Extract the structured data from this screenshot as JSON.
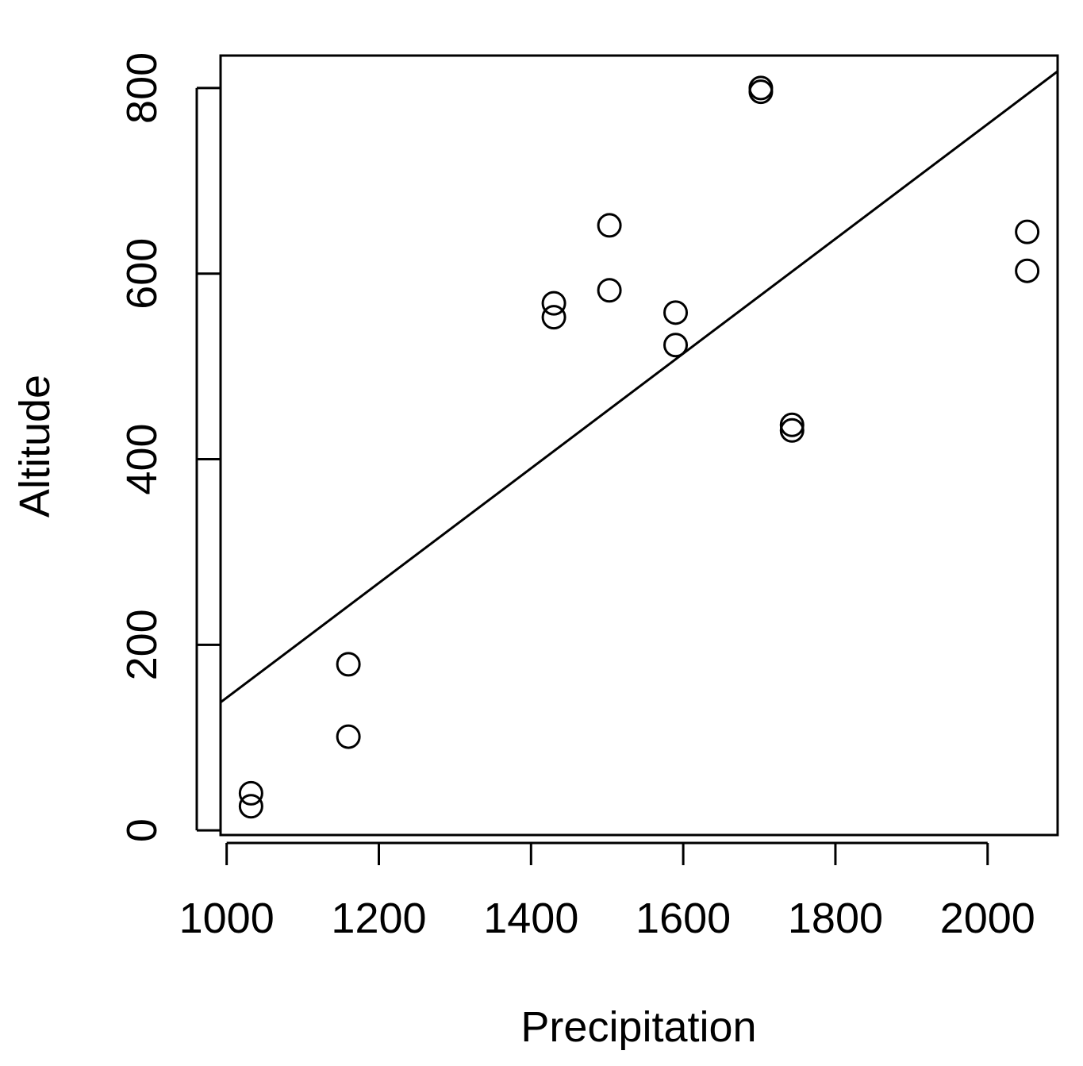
{
  "chart_data": {
    "type": "scatter",
    "xlabel": "Precipitation",
    "ylabel": "Altitude",
    "xlim": [
      992,
      2092
    ],
    "ylim": [
      -5,
      835
    ],
    "x_ticks": [
      1000,
      1200,
      1400,
      1600,
      1800,
      2000
    ],
    "y_ticks": [
      0,
      200,
      400,
      600,
      800
    ],
    "grid": false,
    "legend": "none",
    "points": [
      {
        "x": 1032,
        "y": 40
      },
      {
        "x": 1032,
        "y": 26
      },
      {
        "x": 1160,
        "y": 179
      },
      {
        "x": 1160,
        "y": 101
      },
      {
        "x": 1430,
        "y": 568
      },
      {
        "x": 1430,
        "y": 553
      },
      {
        "x": 1503,
        "y": 652
      },
      {
        "x": 1503,
        "y": 582
      },
      {
        "x": 1590,
        "y": 558
      },
      {
        "x": 1590,
        "y": 523
      },
      {
        "x": 1702,
        "y": 800
      },
      {
        "x": 1702,
        "y": 796
      },
      {
        "x": 1743,
        "y": 437
      },
      {
        "x": 1743,
        "y": 431
      },
      {
        "x": 2052,
        "y": 645
      },
      {
        "x": 2052,
        "y": 603
      }
    ],
    "fit_line": {
      "x": [
        992,
        2092
      ],
      "y": [
        138,
        818
      ]
    },
    "colors": {
      "points": "#000000",
      "line": "#000000",
      "axes": "#000000"
    }
  }
}
